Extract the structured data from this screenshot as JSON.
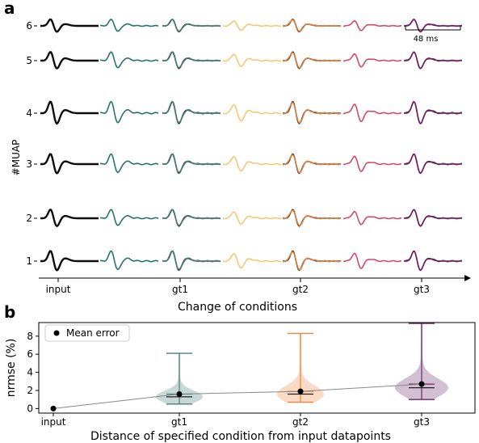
{
  "panel_a": {
    "label": "a",
    "ylabel": "#MUAP",
    "xlabel": "Change of conditions",
    "scale_bar_label": "48 ms"
  },
  "panel_b": {
    "label": "b",
    "legend_label": "Mean error"
  },
  "chart_data": [
    {
      "type": "line",
      "title": "",
      "xlabel": "Change of conditions",
      "ylabel": "#MUAP",
      "y_ticks": [
        "1",
        "2",
        "3",
        "4",
        "5",
        "6"
      ],
      "x_ticks": [
        "input",
        "gt1",
        "gt2",
        "gt3"
      ],
      "columns": [
        {
          "name": "input",
          "color": "#000000"
        },
        {
          "name": "",
          "color": "#1b6b63"
        },
        {
          "name": "gt1",
          "color": "#4a7f77"
        },
        {
          "name": "",
          "color": "#f6c56f"
        },
        {
          "name": "gt2",
          "color": "#e8853f"
        },
        {
          "name": "",
          "color": "#d0405f"
        },
        {
          "name": "gt3",
          "color": "#7a1d6b"
        }
      ],
      "scale_bar": "48 ms"
    },
    {
      "type": "violin",
      "title": "",
      "xlabel": "Distance of specified condition from input datapoints",
      "ylabel": "nrmse (%)",
      "categories": [
        "input",
        "gt1",
        "gt2",
        "gt3"
      ],
      "ylim": [
        -0.5,
        9.5
      ],
      "y_ticks": [
        0,
        2,
        4,
        6,
        8
      ],
      "legend": "Mean error",
      "legend_position": "top-left",
      "series": [
        {
          "category": "input",
          "mean": 0.0,
          "min": 0.0,
          "max": 0.0,
          "median": 0.0,
          "color": "#000000"
        },
        {
          "category": "gt1",
          "mean": 1.6,
          "min": 0.5,
          "max": 6.1,
          "median": 1.3,
          "color": "#4a7f77"
        },
        {
          "category": "gt2",
          "mean": 1.9,
          "min": 0.7,
          "max": 8.3,
          "median": 1.6,
          "color": "#e8853f"
        },
        {
          "category": "gt3",
          "mean": 2.7,
          "min": 1.0,
          "max": 9.4,
          "median": 2.3,
          "color": "#6b2a6b"
        }
      ]
    }
  ]
}
